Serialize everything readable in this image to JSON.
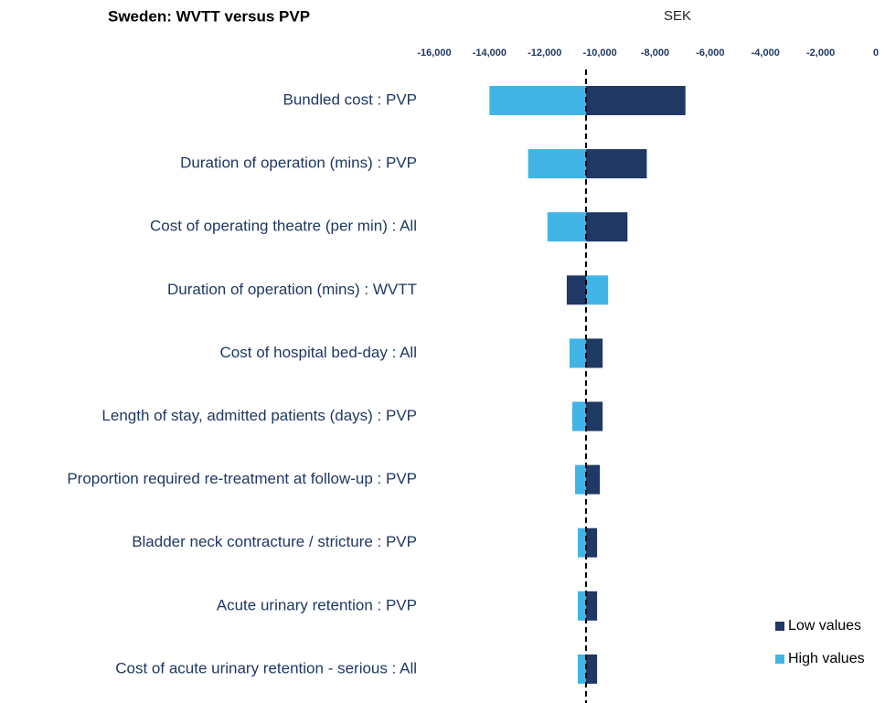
{
  "chart_data": {
    "type": "tornado",
    "title": "Sweden: WVTT versus PVP",
    "value_axis_label": "SEK",
    "categories": [
      "Bundled cost : PVP",
      "Duration of operation (mins) : PVP",
      "Cost of operating theatre (per min) : All",
      "Duration of operation (mins) : WVTT",
      "Cost of hospital bed-day : All",
      "Length of stay, admitted patients (days) : PVP",
      "Proportion required re-treatment at follow-up : PVP",
      "Bladder neck contracture / stricture : PVP",
      "Acute urinary retention : PVP",
      "Cost of acute urinary retention - serious : All"
    ],
    "baseline": -10500,
    "series": [
      {
        "name": "Low values",
        "color": "#1f3864",
        "values": [
          -6900,
          -8300,
          -9000,
          -11200,
          -9900,
          -9900,
          -10000,
          -10100,
          -10100,
          -10100
        ]
      },
      {
        "name": "High values",
        "color": "#41b4e6",
        "values": [
          -14000,
          -12600,
          -11900,
          -9700,
          -11100,
          -11000,
          -10900,
          -10800,
          -10800,
          -10800
        ]
      }
    ],
    "xlim": [
      -16000,
      0
    ],
    "xticks": [
      {
        "value": -16000,
        "label": "-16,000"
      },
      {
        "value": -14000,
        "label": "-14,000"
      },
      {
        "value": -12000,
        "label": "-12,000"
      },
      {
        "value": -10000,
        "label": "-10,000"
      },
      {
        "value": -8000,
        "label": "-8,000"
      },
      {
        "value": -6000,
        "label": "-6,000"
      },
      {
        "value": -4000,
        "label": "-4,000"
      },
      {
        "value": -2000,
        "label": "-2,000"
      },
      0
    ],
    "legend": "bottom-right"
  }
}
